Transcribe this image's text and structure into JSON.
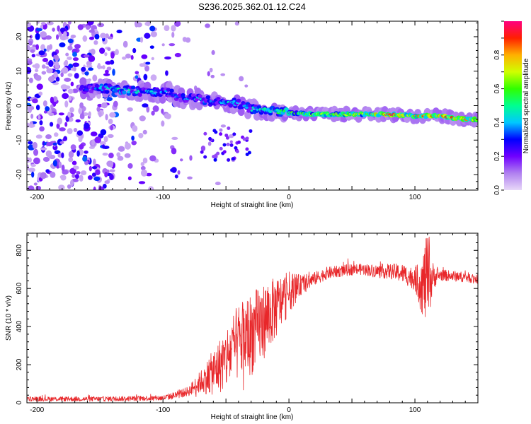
{
  "figure_title": "S236.2025.362.01.12.C24",
  "chart_data": [
    {
      "type": "heatmap",
      "title": "S236.2025.362.01.12.C24",
      "xlabel": "Height of straight line (km)",
      "ylabel": "Frequency (Hz)",
      "xlim": [
        -208,
        150
      ],
      "ylim": [
        -24.5,
        24.5
      ],
      "xticks": [
        -200,
        -100,
        0,
        100
      ],
      "xtick_labels": [
        "-200",
        "-100",
        "0",
        "100"
      ],
      "yticks": [
        -20,
        -10,
        0,
        10,
        20
      ],
      "ytick_labels": [
        "-20",
        "-10",
        "0",
        "10",
        "20"
      ],
      "colorbar": {
        "label": "Normalized spectral amplitude",
        "range": [
          0,
          1
        ],
        "ticks": [
          0.0,
          0.2,
          0.4,
          0.6,
          0.8
        ],
        "tick_labels": [
          "0.0",
          "0.2",
          "0.4",
          "0.6",
          "0.8"
        ],
        "colormap": [
          "#e8d8f8",
          "#b080f0",
          "#7000ff",
          "#0000ff",
          "#00c8ff",
          "#00ff90",
          "#30ff00",
          "#d0ff00",
          "#ffb000",
          "#ff2000",
          "#ff0080"
        ]
      },
      "ridge": {
        "description_points_x": [
          -160,
          -145,
          -130,
          -115,
          -100,
          -90,
          -80,
          -70,
          -60,
          -50,
          -40,
          -30,
          -20,
          -10,
          0,
          20,
          40,
          60,
          80,
          100,
          120,
          140,
          150
        ],
        "description_points_freq": [
          5,
          5,
          4.5,
          4,
          4,
          3,
          2,
          2,
          1,
          1,
          0.5,
          -1,
          -1,
          -1.5,
          -2,
          -2.5,
          -2.5,
          -2.5,
          -2.5,
          -3,
          -3,
          -4,
          -4
        ],
        "peak_amplitude": [
          0.3,
          0.45,
          0.45,
          0.4,
          0.35,
          0.35,
          0.35,
          0.4,
          0.35,
          0.4,
          0.4,
          0.4,
          0.45,
          0.5,
          0.55,
          0.65,
          0.65,
          0.7,
          0.9,
          0.75,
          0.9,
          0.75,
          0.7
        ]
      }
    },
    {
      "type": "line",
      "title": "",
      "xlabel": "Height of straight line (km)",
      "ylabel": "SNR (10 * v/v)",
      "xlim": [
        -208,
        150
      ],
      "ylim": [
        0,
        890
      ],
      "xticks": [
        -200,
        -100,
        0,
        100
      ],
      "xtick_labels": [
        "-200",
        "-100",
        "0",
        "100"
      ],
      "yticks": [
        0,
        200,
        400,
        600,
        800
      ],
      "ytick_labels": [
        "0",
        "200",
        "400",
        "600",
        "800"
      ],
      "series": [
        {
          "name": "SNR",
          "color": "#e8272a",
          "envelope_x": [
            -208,
            -150,
            -100,
            -90,
            -80,
            -70,
            -60,
            -50,
            -40,
            -30,
            -20,
            -10,
            0,
            10,
            20,
            30,
            40,
            50,
            60,
            70,
            80,
            90,
            100,
            105,
            110,
            115,
            120,
            130,
            140,
            150
          ],
          "envelope_y": [
            20,
            20,
            25,
            40,
            60,
            110,
            160,
            230,
            320,
            360,
            430,
            500,
            580,
            620,
            650,
            680,
            690,
            700,
            700,
            690,
            690,
            680,
            650,
            620,
            640,
            660,
            670,
            665,
            660,
            650
          ],
          "noise_amp_x": [
            -208,
            -100,
            -80,
            -70,
            -60,
            -50,
            -40,
            -30,
            -20,
            -10,
            0,
            10,
            20,
            40,
            60,
            80,
            100,
            105,
            110,
            115,
            120,
            150
          ],
          "noise_amp_y": [
            12,
            14,
            25,
            60,
            120,
            170,
            200,
            220,
            200,
            160,
            110,
            50,
            35,
            30,
            30,
            40,
            60,
            150,
            250,
            60,
            30,
            25
          ]
        }
      ]
    }
  ]
}
